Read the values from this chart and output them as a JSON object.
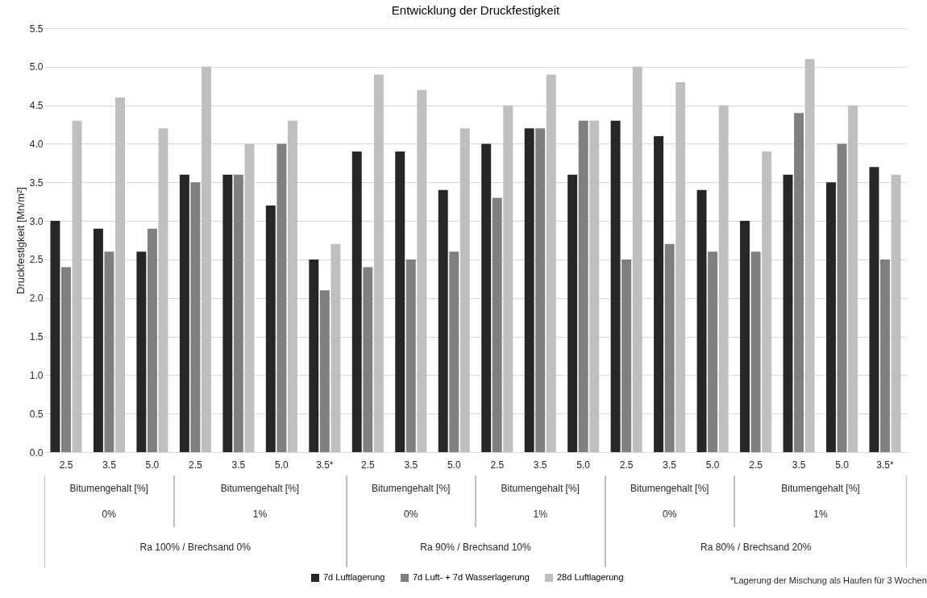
{
  "chart_data": {
    "type": "bar",
    "title": "Entwicklung der Druckfestigkeit",
    "ylabel": "Druckfestigkeit [Mn/m²]",
    "categories": [
      "2.5",
      "3.5",
      "5.0",
      "2.5",
      "3.5",
      "5.0",
      "3.5*",
      "2.5",
      "3.5",
      "5.0",
      "2.5",
      "3.5",
      "5.0",
      "2.5",
      "3.5",
      "5.0",
      "2.5",
      "3.5",
      "5.0",
      "3.5*"
    ],
    "series": [
      {
        "name": "7d Luftlagerung",
        "color": "#262626",
        "values": [
          3.0,
          2.9,
          2.6,
          3.6,
          3.6,
          3.2,
          2.5,
          3.9,
          3.9,
          3.4,
          4.0,
          4.2,
          3.6,
          4.3,
          4.1,
          3.4,
          3.0,
          3.6,
          3.5,
          3.7
        ]
      },
      {
        "name": "7d Luft- + 7d Wasserlagerung",
        "color": "#7f7f7f",
        "values": [
          2.4,
          2.6,
          2.9,
          3.5,
          3.6,
          4.0,
          2.1,
          2.4,
          2.5,
          2.6,
          3.3,
          4.2,
          4.3,
          2.5,
          2.7,
          2.6,
          2.6,
          4.4,
          4.0,
          2.5
        ]
      },
      {
        "name": "28d Luftlagerung",
        "color": "#bfbfbf",
        "values": [
          4.3,
          4.6,
          4.2,
          5.0,
          4.0,
          4.3,
          2.7,
          4.9,
          4.7,
          4.2,
          4.5,
          4.9,
          4.3,
          5.0,
          4.8,
          4.5,
          3.9,
          5.1,
          4.5,
          3.6
        ]
      }
    ],
    "ylim": [
      0,
      5.5
    ],
    "yticks": [
      {
        "value": 0,
        "label": "0.0"
      },
      0.5,
      {
        "value": 1,
        "label": "1.0"
      },
      1.5,
      {
        "value": 2,
        "label": "2.0"
      },
      2.5,
      {
        "value": 3,
        "label": "3.0"
      },
      3.5,
      {
        "value": 4,
        "label": "4.0"
      },
      4.5,
      {
        "value": 5,
        "label": "5.0"
      },
      5.5
    ],
    "grid": "y",
    "legend": "bottom",
    "annotations": [
      "Bitumengehalt [%]",
      "Bitumengehalt [%]",
      "Bitumengehalt [%]",
      "Bitumengehalt [%]",
      "Bitumengehalt [%]",
      "Bitumengehalt [%]",
      "0%",
      "1%",
      "0%",
      "1%",
      "0%",
      "1%",
      "Ra 100% / Brechsand 0%",
      "Ra 90% / Brechsand 10%",
      "Ra 80% / Brechsand 20%",
      "*Lagerung der Mischung als Haufen für 3 Wochen"
    ]
  }
}
